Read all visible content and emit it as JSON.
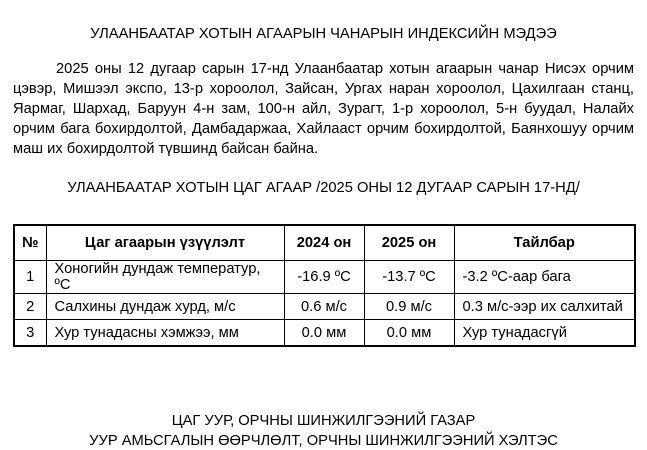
{
  "doc": {
    "title": "УЛААНБААТАР ХОТЫН АГААРЫН ЧАНАРЫН ИНДЕКСИЙН МЭДЭЭ",
    "paragraph": "2025 оны 12 дугаар сарын 17-нд Улаанбаатар хотын агаарын чанар Нисэх орчим цэвэр, Мишээл экспо, 13-р хороолол, Зайсан, Ургах наран хороолол, Цахилгаан станц, Яармаг, Шархад, Баруун 4-н зам, 100-н айл, Зурагт, 1-р хороолол, 5-н буудал, Налайх орчим бага бохирдолтой, Дамбадаржаа, Хайлааст орчим бохирдолтой, Баянхошуу орчим маш их бохирдолтой түвшинд байсан байна.",
    "subtitle": "УЛААНБААТАР ХОТЫН ЦАГ АГААР /2025 ОНЫ 12 ДУГААР САРЫН 17-НД/"
  },
  "table": {
    "headers": [
      "№",
      "Цаг агаарын үзүүлэлт",
      "2024 он",
      "2025 он",
      "Тайлбар"
    ],
    "rows": [
      {
        "no": "1",
        "indicator": "Хоногийн дундаж температур, ºС",
        "y2024": "-16.9 ºС",
        "y2025": "-13.7 ºС",
        "note": "-3.2 ºС-аар бага"
      },
      {
        "no": "2",
        "indicator": "Салхины дундаж хурд, м/с",
        "y2024": "0.6 м/с",
        "y2025": "0.9 м/с",
        "note": "0.3 м/с-ээр их салхитай"
      },
      {
        "no": "3",
        "indicator": "Хур тунадасны хэмжээ, мм",
        "y2024": "0.0 мм",
        "y2025": "0.0 мм",
        "note": "Хур тунадасгүй"
      }
    ]
  },
  "footer": {
    "line1": "ЦАГ УУР, ОРЧНЫ ШИНЖИЛГЭЭНИЙ ГАЗАР",
    "line2": "УУР АМЬСГАЛЫН ӨӨРЧЛӨЛТ, ОРЧНЫ ШИНЖИЛГЭЭНИЙ ХЭЛТЭС"
  },
  "colors": {
    "text": "#000000",
    "background": "#ffffff",
    "table_border": "#000000"
  }
}
